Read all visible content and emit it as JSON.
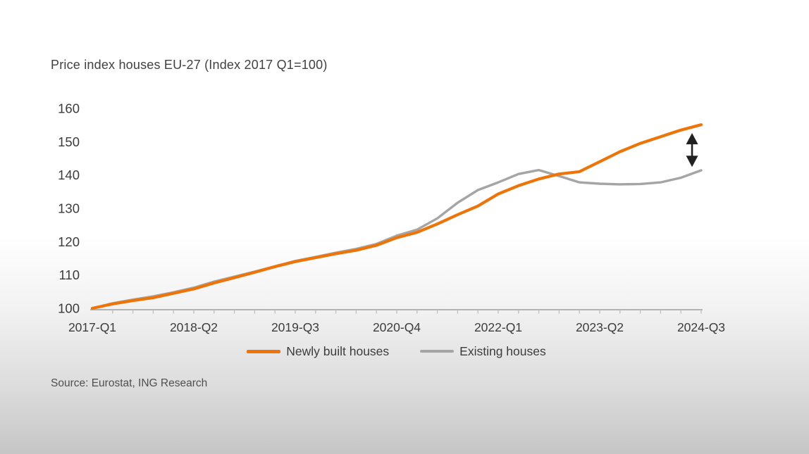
{
  "page": {
    "source": "Source: Eurostat, ING Research"
  },
  "chart_data": {
    "type": "line",
    "title": "Price index houses EU-27 (Index 2017 Q1=100)",
    "categories": [
      "2017-Q1",
      "2017-Q2",
      "2017-Q3",
      "2017-Q4",
      "2018-Q1",
      "2018-Q2",
      "2018-Q3",
      "2018-Q4",
      "2019-Q1",
      "2019-Q2",
      "2019-Q3",
      "2019-Q4",
      "2020-Q1",
      "2020-Q2",
      "2020-Q3",
      "2020-Q4",
      "2021-Q1",
      "2021-Q2",
      "2021-Q3",
      "2021-Q4",
      "2022-Q1",
      "2022-Q2",
      "2022-Q3",
      "2022-Q4",
      "2023-Q1",
      "2023-Q2",
      "2023-Q3",
      "2023-Q4",
      "2024-Q1",
      "2024-Q2",
      "2024-Q3"
    ],
    "series": [
      {
        "name": "Newly built houses",
        "color": "#ee7408",
        "values": [
          100,
          101.3,
          102.3,
          103.2,
          104.5,
          105.8,
          107.6,
          109.2,
          110.8,
          112.5,
          114.0,
          115.2,
          116.4,
          117.4,
          118.9,
          121.2,
          122.8,
          125.3,
          128.1,
          130.7,
          134.3,
          136.8,
          138.8,
          140.3,
          141.0,
          144.0,
          147.0,
          149.5,
          151.5,
          153.5,
          155.1
        ]
      },
      {
        "name": "Existing houses",
        "color": "#a5a5a5",
        "values": [
          100,
          101.5,
          102.6,
          103.6,
          104.8,
          106.2,
          108.0,
          109.5,
          111.0,
          112.6,
          114.2,
          115.4,
          116.7,
          117.8,
          119.3,
          121.8,
          123.6,
          127.0,
          131.7,
          135.5,
          137.8,
          140.3,
          141.5,
          139.7,
          137.8,
          137.4,
          137.2,
          137.3,
          137.8,
          139.2,
          141.4
        ]
      }
    ],
    "ylim": [
      100,
      160
    ],
    "yticks": [
      100,
      110,
      120,
      130,
      140,
      150,
      160
    ],
    "xtick_indices": [
      0,
      5,
      10,
      15,
      20,
      25,
      30
    ],
    "xtick_labels": [
      "2017-Q1",
      "2018-Q2",
      "2019-Q3",
      "2020-Q4",
      "2022-Q1",
      "2023-Q2",
      "2024-Q3"
    ],
    "grid": false,
    "legend_position": "bottom",
    "annotation": {
      "type": "double-headed-vertical-arrow",
      "x_index": 29.55,
      "value_top": 152.6,
      "value_bottom": 142.4,
      "color": "#212121",
      "meaning": "gap between newly built and existing house price index at end of series"
    },
    "axis_color": "#b3b3b3",
    "label_color": "#3c3c3c"
  }
}
